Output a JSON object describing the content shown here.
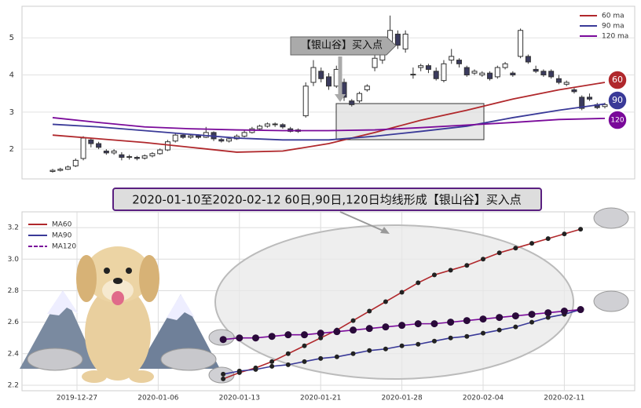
{
  "chart_data": [
    {
      "type": "candlestick",
      "open": [
        1.4,
        1.43,
        1.46,
        1.55,
        1.75,
        2.25,
        2.15,
        1.95,
        1.9,
        1.85,
        1.78,
        1.78,
        1.76,
        1.82,
        1.88,
        1.98,
        2.22,
        2.38,
        2.32,
        2.36,
        2.32,
        2.45,
        2.26,
        2.22,
        2.28,
        2.35,
        2.45,
        2.55,
        2.62,
        2.68,
        2.66,
        2.55,
        2.48,
        2.9,
        3.8,
        4.1,
        3.95,
        3.7,
        3.8,
        3.3,
        3.3,
        3.6,
        4.2,
        4.4,
        4.9,
        5.1,
        4.7,
        4.0,
        4.2,
        4.25,
        4.1,
        3.85,
        4.4,
        4.4,
        4.2,
        4.05,
        4.0,
        4.05,
        3.95,
        4.2,
        4.05,
        4.5,
        4.5,
        4.15,
        4.1,
        4.1,
        3.9,
        3.75,
        3.6,
        3.4,
        3.4,
        3.2,
        3.15
      ],
      "close": [
        1.43,
        1.46,
        1.52,
        1.7,
        2.3,
        2.15,
        2.05,
        1.9,
        1.95,
        1.78,
        1.8,
        1.75,
        1.82,
        1.88,
        1.98,
        2.2,
        2.38,
        2.32,
        2.36,
        2.32,
        2.45,
        2.28,
        2.22,
        2.28,
        2.35,
        2.45,
        2.55,
        2.62,
        2.68,
        2.66,
        2.6,
        2.48,
        2.52,
        3.7,
        4.2,
        3.9,
        3.7,
        4.15,
        3.4,
        3.2,
        3.5,
        3.7,
        4.45,
        4.9,
        5.2,
        4.8,
        5.1,
        4.02,
        4.25,
        4.15,
        3.9,
        4.3,
        4.5,
        4.3,
        4.0,
        4.1,
        4.05,
        3.9,
        4.2,
        4.3,
        4.0,
        5.2,
        4.35,
        4.1,
        4.0,
        3.95,
        3.8,
        3.8,
        3.55,
        3.1,
        3.35,
        3.12,
        3.2
      ],
      "high": [
        1.47,
        1.5,
        1.56,
        1.75,
        2.35,
        2.3,
        2.2,
        2.0,
        2.0,
        1.92,
        1.85,
        1.82,
        1.86,
        1.92,
        2.02,
        2.25,
        2.42,
        2.42,
        2.4,
        2.4,
        2.6,
        2.48,
        2.3,
        2.32,
        2.4,
        2.5,
        2.6,
        2.66,
        2.72,
        2.72,
        2.7,
        2.6,
        2.56,
        3.8,
        4.4,
        4.2,
        4.05,
        4.25,
        3.9,
        3.35,
        3.55,
        3.75,
        4.55,
        5.0,
        5.6,
        5.2,
        5.2,
        4.2,
        4.3,
        4.3,
        4.2,
        4.4,
        4.7,
        4.45,
        4.25,
        4.15,
        4.1,
        4.1,
        4.25,
        4.35,
        4.1,
        5.25,
        4.55,
        4.25,
        4.15,
        4.15,
        4.0,
        3.85,
        3.65,
        3.45,
        3.5,
        3.25,
        3.25
      ],
      "low": [
        1.37,
        1.4,
        1.44,
        1.52,
        1.7,
        2.05,
        2.0,
        1.85,
        1.85,
        1.7,
        1.72,
        1.7,
        1.72,
        1.78,
        1.85,
        1.95,
        2.18,
        2.28,
        2.28,
        2.28,
        2.3,
        2.22,
        2.18,
        2.18,
        2.25,
        2.32,
        2.42,
        2.5,
        2.58,
        2.6,
        2.55,
        2.45,
        2.44,
        2.85,
        3.7,
        3.8,
        3.6,
        3.65,
        3.3,
        3.15,
        3.25,
        3.55,
        4.1,
        4.3,
        4.85,
        4.7,
        4.6,
        3.9,
        4.1,
        4.05,
        3.85,
        3.8,
        4.3,
        4.2,
        3.95,
        4.0,
        3.95,
        3.85,
        3.9,
        4.15,
        3.95,
        4.45,
        4.3,
        4.05,
        3.95,
        3.9,
        3.75,
        3.7,
        3.5,
        3.05,
        3.3,
        3.08,
        3.1
      ],
      "series": [
        {
          "name": "60 ma",
          "color": "#b0282c",
          "values": [
            2.38,
            2.28,
            2.18,
            2.05,
            1.92,
            1.95,
            2.15,
            2.45,
            2.78,
            3.05,
            3.35,
            3.6,
            3.8
          ]
        },
        {
          "name": "90 ma",
          "color": "#3a3a98",
          "values": [
            2.67,
            2.6,
            2.5,
            2.4,
            2.3,
            2.25,
            2.25,
            2.35,
            2.48,
            2.62,
            2.85,
            3.05,
            3.22
          ]
        },
        {
          "name": "120 ma",
          "color": "#7a0a9a",
          "values": [
            2.85,
            2.72,
            2.6,
            2.55,
            2.52,
            2.5,
            2.5,
            2.52,
            2.58,
            2.65,
            2.72,
            2.8,
            2.83
          ]
        }
      ],
      "end_labels": [
        "60",
        "90",
        "120"
      ],
      "annotation": "【银山谷】买入点",
      "ylim": [
        1.2,
        5.85
      ],
      "yticks": [
        2,
        3,
        4,
        5
      ],
      "grid": true
    },
    {
      "type": "line",
      "title": "2020-01-10至2020-02-12 60日,90日,120日均线形成【银山谷】买入点",
      "categories": [
        "2019-12-27",
        null,
        null,
        null,
        null,
        "2020-01-06",
        null,
        null,
        null,
        null,
        "2020-01-13",
        null,
        null,
        null,
        null,
        "2020-01-21",
        null,
        null,
        null,
        null,
        "2020-01-28",
        null,
        null,
        null,
        null,
        "2020-02-04",
        null,
        null,
        null,
        null,
        "2020-02-11",
        null,
        null
      ],
      "series": [
        {
          "name": "MA60",
          "color": "#b0282c",
          "values": [
            null,
            null,
            null,
            null,
            null,
            null,
            null,
            null,
            null,
            2.24,
            2.28,
            2.31,
            2.35,
            2.4,
            2.45,
            2.5,
            2.55,
            2.61,
            2.67,
            2.73,
            2.79,
            2.85,
            2.9,
            2.93,
            2.96,
            3.0,
            3.04,
            3.07,
            3.1,
            3.13,
            3.16,
            3.19,
            null
          ]
        },
        {
          "name": "MA90",
          "color": "#3a3a98",
          "values": [
            null,
            null,
            null,
            null,
            null,
            null,
            null,
            null,
            null,
            2.27,
            2.29,
            2.3,
            2.32,
            2.33,
            2.35,
            2.37,
            2.38,
            2.4,
            2.42,
            2.43,
            2.45,
            2.46,
            2.48,
            2.5,
            2.51,
            2.53,
            2.55,
            2.57,
            2.6,
            2.63,
            2.65,
            2.68,
            null
          ]
        },
        {
          "name": "MA120",
          "color": "#7a0a9a",
          "values": [
            null,
            null,
            null,
            null,
            null,
            null,
            null,
            null,
            null,
            2.49,
            2.5,
            2.5,
            2.51,
            2.52,
            2.52,
            2.53,
            2.54,
            2.55,
            2.56,
            2.57,
            2.58,
            2.59,
            2.59,
            2.6,
            2.61,
            2.62,
            2.63,
            2.64,
            2.65,
            2.66,
            2.67,
            2.68,
            null
          ]
        }
      ],
      "ylim": [
        2.165,
        3.3
      ],
      "yticks": [
        2.2,
        2.4,
        2.6,
        2.8,
        {
          "value": 3,
          "label": "3.0"
        },
        3.2
      ],
      "grid": true
    }
  ]
}
